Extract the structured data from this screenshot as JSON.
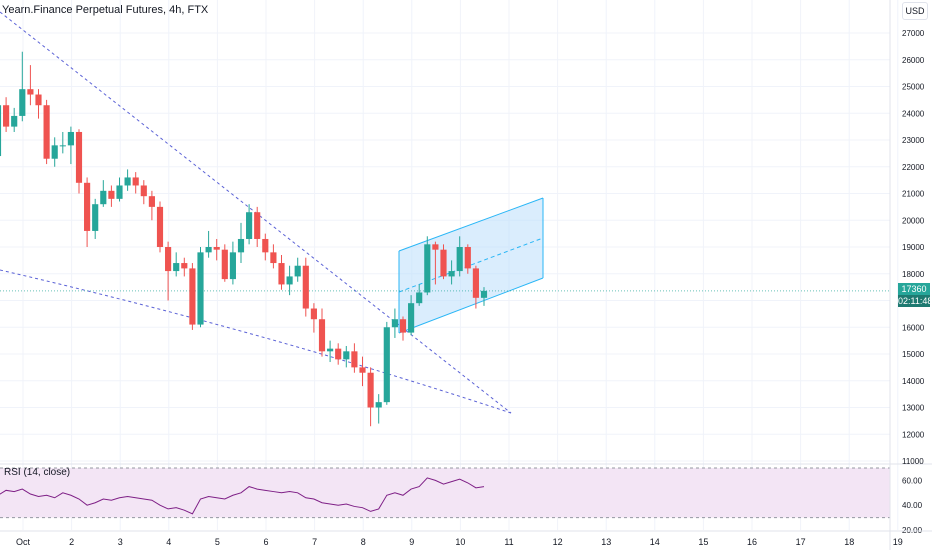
{
  "header": {
    "symbol_title": "Yearn.Finance Perpetual Futures, 4h, FTX",
    "currency": "USD"
  },
  "price_scale": {
    "ticks": [
      "27000",
      "26000",
      "25000",
      "24000",
      "23000",
      "22000",
      "21000",
      "20000",
      "19000",
      "18000",
      "17000",
      "16000",
      "15000",
      "14000",
      "13000",
      "12000",
      "11000"
    ],
    "last_price": "17360",
    "countdown": "02:11:48"
  },
  "rsi": {
    "title": "RSI (14, close)",
    "ticks": [
      "60.00",
      "40.00",
      "20.00"
    ]
  },
  "time_axis": {
    "labels": [
      "Oct",
      "2",
      "3",
      "4",
      "5",
      "6",
      "7",
      "8",
      "9",
      "10",
      "11",
      "12",
      "13",
      "14",
      "15",
      "16",
      "17",
      "18",
      "19"
    ]
  },
  "colors": {
    "up": "#26a69a",
    "down": "#ef5350",
    "trendline": "#5b62d6",
    "channel_fill": "#bbdefb",
    "channel_line": "#29b6f6",
    "rsi_line": "#7e1f86",
    "rsi_band": "#f3e5f5"
  },
  "chart_data": {
    "type": "candlestick",
    "interval": "4h",
    "ylim": [
      11000,
      27500
    ],
    "candles": [
      [
        22400,
        24300,
        25000,
        22000
      ],
      [
        24300,
        23500,
        24600,
        23300
      ],
      [
        23500,
        23900,
        24200,
        23300
      ],
      [
        23900,
        24900,
        26300,
        23700
      ],
      [
        24900,
        24700,
        25800,
        24300
      ],
      [
        24700,
        24300,
        24900,
        23800
      ],
      [
        24300,
        22300,
        24500,
        22100
      ],
      [
        22300,
        22800,
        23100,
        22000
      ],
      [
        22800,
        22800,
        23300,
        22500
      ],
      [
        22800,
        23300,
        23500,
        22100
      ],
      [
        23300,
        21400,
        23400,
        21000
      ],
      [
        21400,
        19600,
        21600,
        19000
      ],
      [
        19600,
        20600,
        20800,
        19300
      ],
      [
        20600,
        21100,
        21500,
        20500
      ],
      [
        21100,
        20800,
        21300,
        20500
      ],
      [
        20800,
        21300,
        21600,
        20700
      ],
      [
        21300,
        21600,
        21900,
        21100
      ],
      [
        21600,
        21300,
        21800,
        21000
      ],
      [
        21300,
        20900,
        21500,
        20600
      ],
      [
        20900,
        20500,
        21100,
        20000
      ],
      [
        20500,
        19000,
        20700,
        18800
      ],
      [
        19000,
        18100,
        19200,
        17000
      ],
      [
        18100,
        18400,
        18800,
        17900
      ],
      [
        18400,
        18200,
        18600,
        17900
      ],
      [
        18200,
        16100,
        18400,
        15900
      ],
      [
        16100,
        18800,
        19000,
        16000
      ],
      [
        18800,
        19000,
        19600,
        18600
      ],
      [
        19000,
        18900,
        19300,
        18500
      ],
      [
        18900,
        17800,
        19100,
        17700
      ],
      [
        17800,
        18800,
        19200,
        17600
      ],
      [
        18800,
        19300,
        19900,
        18400
      ],
      [
        19300,
        20300,
        20600,
        19100
      ],
      [
        20300,
        19300,
        20500,
        19000
      ],
      [
        19300,
        18800,
        19500,
        18500
      ],
      [
        18800,
        18400,
        19100,
        18200
      ],
      [
        18400,
        17600,
        18700,
        17400
      ],
      [
        17600,
        17900,
        18300,
        17200
      ],
      [
        17900,
        18300,
        18600,
        17700
      ],
      [
        18300,
        16700,
        18600,
        16400
      ],
      [
        16700,
        16300,
        16900,
        15800
      ],
      [
        16300,
        15100,
        16700,
        14900
      ],
      [
        15100,
        15200,
        15500,
        14700
      ],
      [
        15200,
        14800,
        15400,
        14600
      ],
      [
        14800,
        15100,
        15300,
        14500
      ],
      [
        15100,
        14500,
        15400,
        14300
      ],
      [
        14500,
        14300,
        14900,
        13800
      ],
      [
        14300,
        13000,
        14500,
        12300
      ],
      [
        13000,
        13200,
        13500,
        12400
      ],
      [
        13200,
        16000,
        16200,
        13100
      ],
      [
        16000,
        16300,
        16700,
        15600
      ],
      [
        16300,
        15800,
        16400,
        15500
      ],
      [
        15800,
        16900,
        17200,
        15700
      ],
      [
        16900,
        17300,
        17600,
        16800
      ],
      [
        17300,
        19100,
        19400,
        17200
      ],
      [
        19100,
        18900,
        19200,
        17600
      ],
      [
        18900,
        17900,
        19100,
        17800
      ],
      [
        17900,
        18100,
        18500,
        17600
      ],
      [
        18100,
        19000,
        19400,
        17900
      ],
      [
        19000,
        18200,
        19100,
        18000
      ],
      [
        18200,
        17100,
        18300,
        16700
      ],
      [
        17100,
        17360,
        17500,
        16800
      ]
    ],
    "rsi_values": [
      48,
      52,
      51,
      53,
      49,
      47,
      48,
      46,
      50,
      48,
      45,
      40,
      42,
      45,
      44,
      46,
      47,
      46,
      45,
      44,
      40,
      37,
      38,
      36,
      33,
      45,
      47,
      46,
      45,
      48,
      50,
      55,
      53,
      52,
      51,
      50,
      51,
      50,
      46,
      45,
      42,
      41,
      40,
      41,
      39,
      38,
      35,
      37,
      48,
      50,
      48,
      53,
      55,
      62,
      60,
      57,
      59,
      61,
      58,
      54,
      55
    ],
    "rsi_ylim": [
      20,
      70
    ],
    "rsi_band": [
      30,
      70
    ]
  }
}
